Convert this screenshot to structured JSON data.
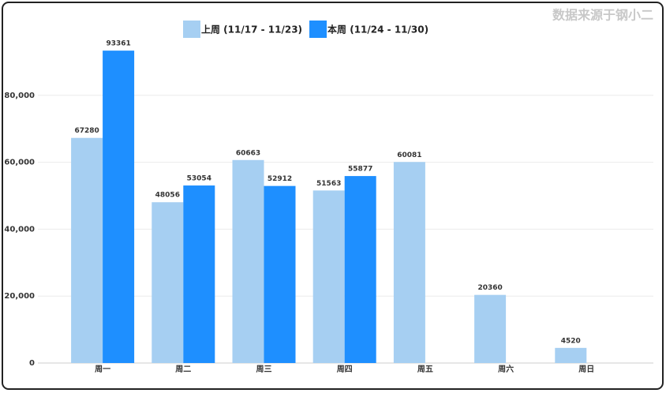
{
  "chart_data": {
    "type": "bar",
    "source": "数据来源于钢小二",
    "categories": [
      "周一",
      "周二",
      "周三",
      "周四",
      "周五",
      "周六",
      "周日"
    ],
    "series": [
      {
        "name": "上周 (11/17 - 11/23)",
        "color": "#a6cff2",
        "values": [
          67280,
          48056,
          60663,
          51563,
          60081,
          20360,
          4520
        ]
      },
      {
        "name": "本周 (11/24 - 11/30)",
        "color": "#1e8fff",
        "values": [
          93361,
          53054,
          52912,
          55877,
          null,
          null,
          null
        ]
      }
    ],
    "ylim": [
      0,
      100000
    ],
    "yticks": [
      0,
      {
        "value": 20000,
        "label": "20,000"
      },
      {
        "value": 40000,
        "label": "40,000"
      },
      {
        "value": 60000,
        "label": "60,000"
      },
      {
        "value": 80000,
        "label": "80,000"
      }
    ],
    "grid": true,
    "legend": "top"
  }
}
